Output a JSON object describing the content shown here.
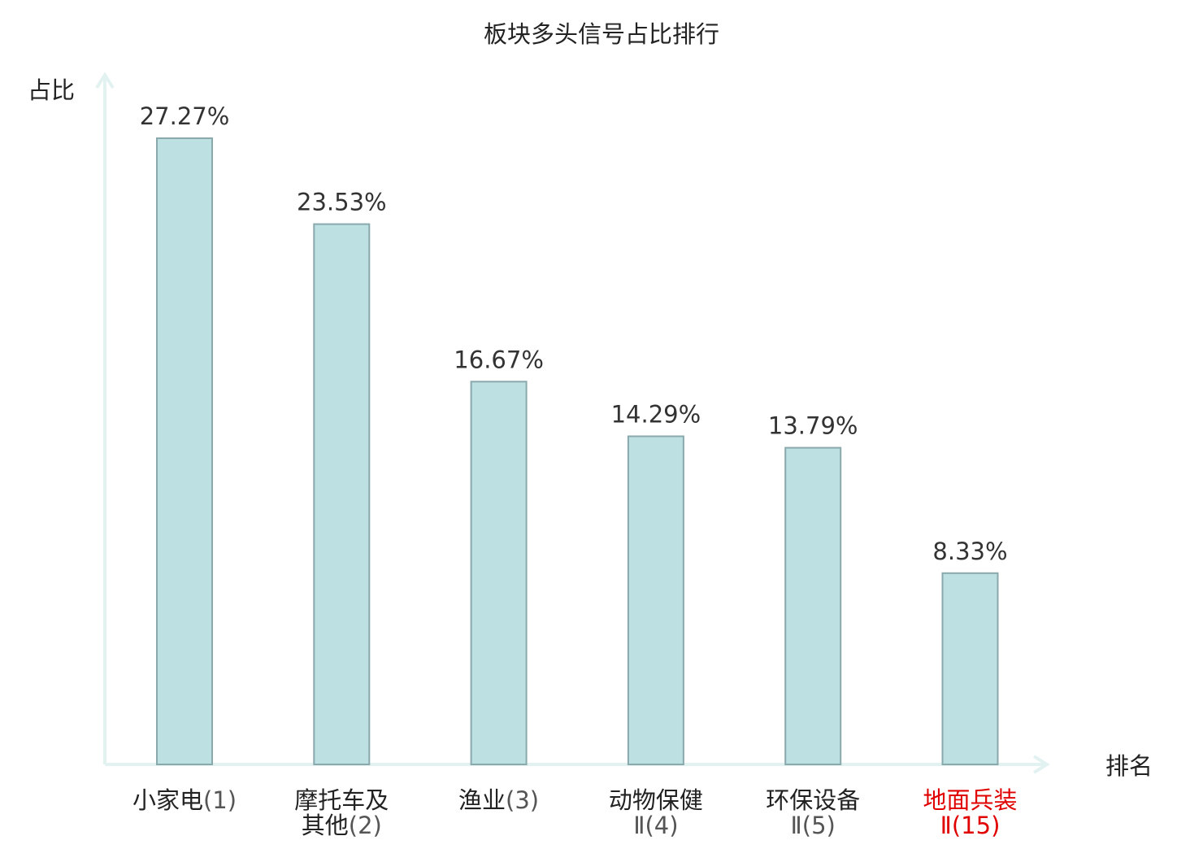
{
  "chart_data": {
    "type": "bar",
    "title": "板块多头信号占比排行",
    "ylabel": "占比",
    "xlabel": "排名",
    "ylim": [
      0,
      30
    ],
    "grid": false,
    "legend": "none",
    "categories": [
      {
        "lines": [
          {
            "name": "小家电",
            "rank": "(1)"
          }
        ],
        "highlight": false
      },
      {
        "lines": [
          {
            "name": "摩托车及",
            "rank": ""
          },
          {
            "name": "其他",
            "rank": "(2)"
          }
        ],
        "highlight": false
      },
      {
        "lines": [
          {
            "name": "渔业",
            "rank": "(3)"
          }
        ],
        "highlight": false
      },
      {
        "lines": [
          {
            "name": "动物保健",
            "rank": ""
          },
          {
            "name": "",
            "rank": "Ⅱ(4)"
          }
        ],
        "highlight": false
      },
      {
        "lines": [
          {
            "name": "环保设备",
            "rank": ""
          },
          {
            "name": "",
            "rank": "Ⅱ(5)"
          }
        ],
        "highlight": false
      },
      {
        "lines": [
          {
            "name": "地面兵装",
            "rank": ""
          },
          {
            "name": "",
            "rank": "Ⅱ(15)"
          }
        ],
        "highlight": true
      }
    ],
    "values": [
      27.27,
      23.53,
      16.67,
      14.29,
      13.79,
      8.33
    ],
    "value_labels": [
      "27.27%",
      "23.53%",
      "16.67%",
      "14.29%",
      "13.79%",
      "8.33%"
    ],
    "colors": {
      "bar_fill": "#bde0e3",
      "bar_stroke": "#8aa9ad",
      "axis": "#e2f2f0",
      "text": "#222222",
      "value_text": "#333333",
      "rank_text": "#555555",
      "highlight": "#e00000"
    }
  }
}
